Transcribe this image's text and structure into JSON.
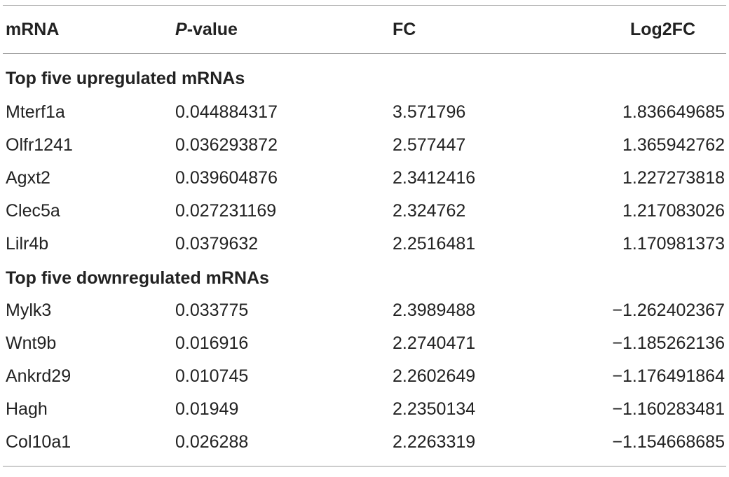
{
  "header": {
    "col_mrna": "mRNA",
    "col_pvalue_italic": "P",
    "col_pvalue_rest": "-value",
    "col_fc": "FC",
    "col_log2fc": "Log2FC"
  },
  "sections": [
    {
      "title": "Top five upregulated mRNAs",
      "rows": [
        {
          "mrna": "Mterf1a",
          "pvalue": "0.044884317",
          "fc": "3.571796",
          "log2fc": "1.836649685"
        },
        {
          "mrna": "Olfr1241",
          "pvalue": "0.036293872",
          "fc": "2.577447",
          "log2fc": "1.365942762"
        },
        {
          "mrna": "Agxt2",
          "pvalue": "0.039604876",
          "fc": "2.3412416",
          "log2fc": "1.227273818"
        },
        {
          "mrna": "Clec5a",
          "pvalue": "0.027231169",
          "fc": "2.324762",
          "log2fc": "1.217083026"
        },
        {
          "mrna": "Lilr4b",
          "pvalue": "0.0379632",
          "fc": "2.2516481",
          "log2fc": "1.170981373"
        }
      ]
    },
    {
      "title": "Top five downregulated mRNAs",
      "rows": [
        {
          "mrna": "Mylk3",
          "pvalue": "0.033775",
          "fc": "2.3989488",
          "log2fc": "−1.262402367"
        },
        {
          "mrna": "Wnt9b",
          "pvalue": "0.016916",
          "fc": "2.2740471",
          "log2fc": "−1.185262136"
        },
        {
          "mrna": "Ankrd29",
          "pvalue": "0.010745",
          "fc": "2.2602649",
          "log2fc": "−1.176491864"
        },
        {
          "mrna": "Hagh",
          "pvalue": "0.01949",
          "fc": "2.2350134",
          "log2fc": "−1.160283481"
        },
        {
          "mrna": "Col10a1",
          "pvalue": "0.026288",
          "fc": "2.2263319",
          "log2fc": "−1.154668685"
        }
      ]
    }
  ]
}
